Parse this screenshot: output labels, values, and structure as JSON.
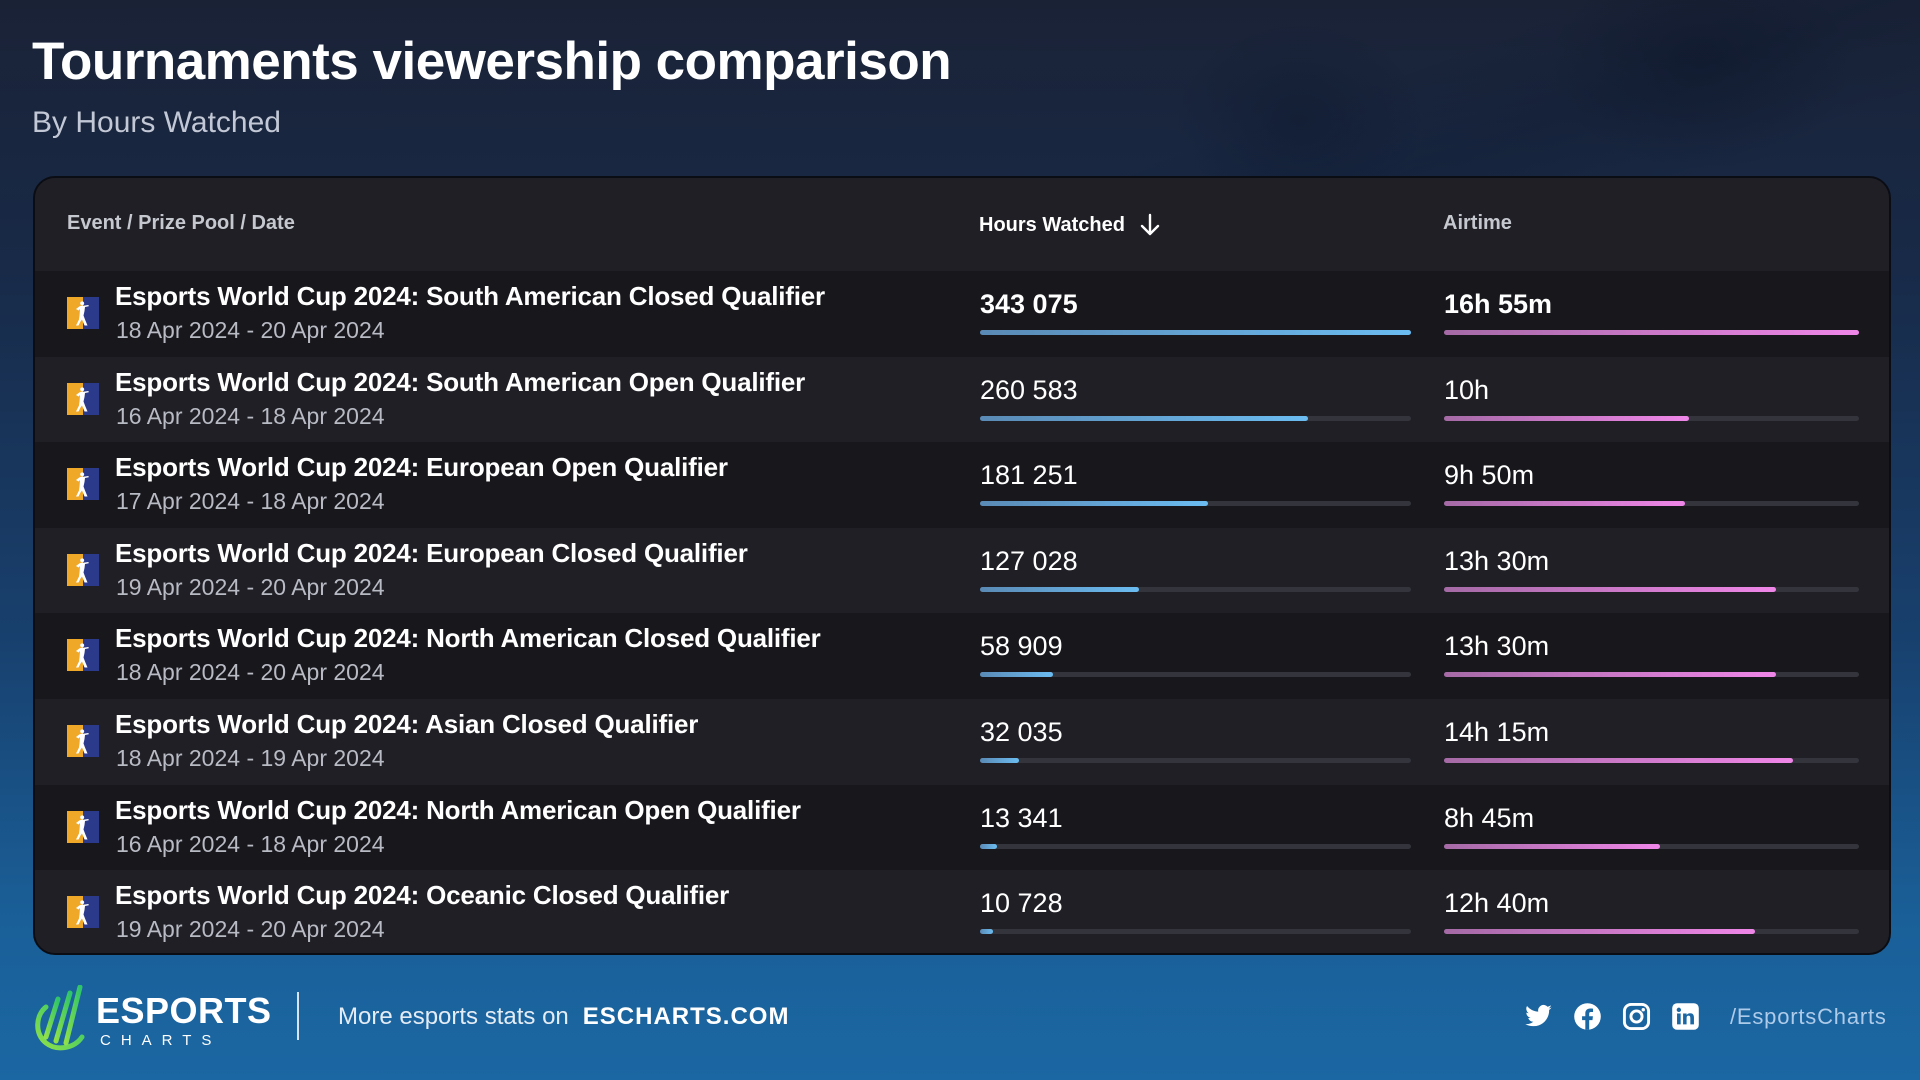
{
  "header": {
    "title": "Tournaments viewership comparison",
    "subtitle": "By Hours Watched"
  },
  "table": {
    "columns": {
      "event": "Event / Prize Pool / Date",
      "hours": "Hours Watched",
      "hours_sort_icon": "arrow-down-icon",
      "airtime": "Airtime"
    },
    "rows": [
      {
        "event": "Esports World Cup 2024: South American Closed Qualifier",
        "date": "18 Apr 2024 - 20 Apr 2024",
        "hours": "343 075",
        "hours_pct": 100,
        "airtime": "16h 55m",
        "airtime_pct": 100
      },
      {
        "event": "Esports World Cup 2024: South American Open Qualifier",
        "date": "16 Apr 2024 - 18 Apr 2024",
        "hours": "260 583",
        "hours_pct": 76,
        "airtime": "10h",
        "airtime_pct": 59
      },
      {
        "event": "Esports World Cup 2024: European Open Qualifier",
        "date": "17 Apr 2024 - 18 Apr 2024",
        "hours": "181 251",
        "hours_pct": 53,
        "airtime": "9h 50m",
        "airtime_pct": 58
      },
      {
        "event": "Esports World Cup 2024: European Closed Qualifier",
        "date": "19 Apr 2024 - 20 Apr 2024",
        "hours": "127 028",
        "hours_pct": 37,
        "airtime": "13h 30m",
        "airtime_pct": 80
      },
      {
        "event": "Esports World Cup 2024: North American Closed Qualifier",
        "date": "18 Apr 2024 - 20 Apr 2024",
        "hours": "58 909",
        "hours_pct": 17,
        "airtime": "13h 30m",
        "airtime_pct": 80
      },
      {
        "event": "Esports World Cup 2024: Asian Closed Qualifier",
        "date": "18 Apr 2024 - 19 Apr 2024",
        "hours": "32 035",
        "hours_pct": 9,
        "airtime": "14h 15m",
        "airtime_pct": 84
      },
      {
        "event": "Esports World Cup 2024: North American Open Qualifier",
        "date": "16 Apr 2024 - 18 Apr 2024",
        "hours": "13 341",
        "hours_pct": 4,
        "airtime": "8h 45m",
        "airtime_pct": 52
      },
      {
        "event": "Esports World Cup 2024: Oceanic Closed Qualifier",
        "date": "19 Apr 2024 - 20 Apr 2024",
        "hours": "10 728",
        "hours_pct": 3,
        "airtime": "12h 40m",
        "airtime_pct": 75
      }
    ]
  },
  "footer": {
    "logo_main": "ESPORTS",
    "logo_sub": "CHARTS",
    "promo_text": "More esports stats on",
    "promo_link": "ESCHARTS.COM",
    "socials": [
      "twitter-icon",
      "facebook-icon",
      "instagram-icon",
      "linkedin-icon"
    ],
    "handle": "/EsportsCharts"
  },
  "colors": {
    "hours_bar": "#6bbcf1",
    "airtime_bar": "#ef86e8",
    "card_bg": "#1c1c22",
    "track": "#34353c"
  },
  "chart_data": {
    "type": "bar",
    "title": "Tournaments viewership comparison",
    "subtitle": "By Hours Watched",
    "categories": [
      "Esports World Cup 2024: South American Closed Qualifier",
      "Esports World Cup 2024: South American Open Qualifier",
      "Esports World Cup 2024: European Open Qualifier",
      "Esports World Cup 2024: European Closed Qualifier",
      "Esports World Cup 2024: North American Closed Qualifier",
      "Esports World Cup 2024: Asian Closed Qualifier",
      "Esports World Cup 2024: North American Open Qualifier",
      "Esports World Cup 2024: Oceanic Closed Qualifier"
    ],
    "series": [
      {
        "name": "Hours Watched",
        "values": [
          343075,
          260583,
          181251,
          127028,
          58909,
          32035,
          13341,
          10728
        ]
      },
      {
        "name": "Airtime (minutes)",
        "values": [
          1015,
          600,
          590,
          810,
          810,
          855,
          525,
          760
        ]
      }
    ],
    "airtime_labels": [
      "16h 55m",
      "10h",
      "9h 50m",
      "13h 30m",
      "13h 30m",
      "14h 15m",
      "8h 45m",
      "12h 40m"
    ],
    "dates": [
      "18 Apr 2024 - 20 Apr 2024",
      "16 Apr 2024 - 18 Apr 2024",
      "17 Apr 2024 - 18 Apr 2024",
      "19 Apr 2024 - 20 Apr 2024",
      "18 Apr 2024 - 20 Apr 2024",
      "18 Apr 2024 - 19 Apr 2024",
      "16 Apr 2024 - 18 Apr 2024",
      "19 Apr 2024 - 20 Apr 2024"
    ],
    "sort": "Hours Watched descending",
    "orientation": "horizontal",
    "legend": "none"
  }
}
